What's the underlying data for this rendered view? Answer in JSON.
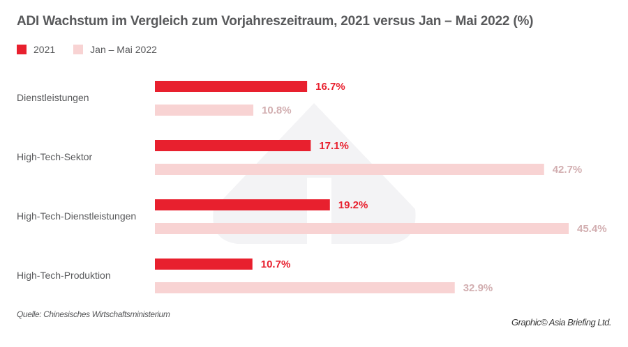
{
  "chart_data": {
    "type": "bar",
    "orientation": "horizontal",
    "title": "ADI Wachstum im Vergleich zum Vorjahreszeitraum, 2021 versus Jan – Mai 2022 (%)",
    "xlabel": "",
    "ylabel": "",
    "categories": [
      "Dienstleistungen",
      "High-Tech-Sektor",
      "High-Tech-Dienstleistungen",
      "High-Tech-Produktion"
    ],
    "series": [
      {
        "name": "2021",
        "color": "#e8202e",
        "label_color": "#e8202e",
        "values": [
          16.7,
          17.1,
          19.2,
          10.7
        ],
        "labels": [
          "16.7%",
          "17.1%",
          "19.2%",
          "10.7%"
        ]
      },
      {
        "name": "Jan – Mai 2022",
        "color": "#f8d3d3",
        "label_color": "#d2aeb0",
        "values": [
          10.8,
          42.7,
          45.4,
          32.9
        ],
        "labels": [
          "10.8%",
          "42.7%",
          "45.4%",
          "32.9%"
        ]
      }
    ],
    "xlim": [
      0,
      45.4
    ],
    "grid": false,
    "legend_position": "top-left"
  },
  "source": "Quelle: Chinesisches Wirtschaftsministerium",
  "credit": "Graphic© Asia Briefing Ltd."
}
